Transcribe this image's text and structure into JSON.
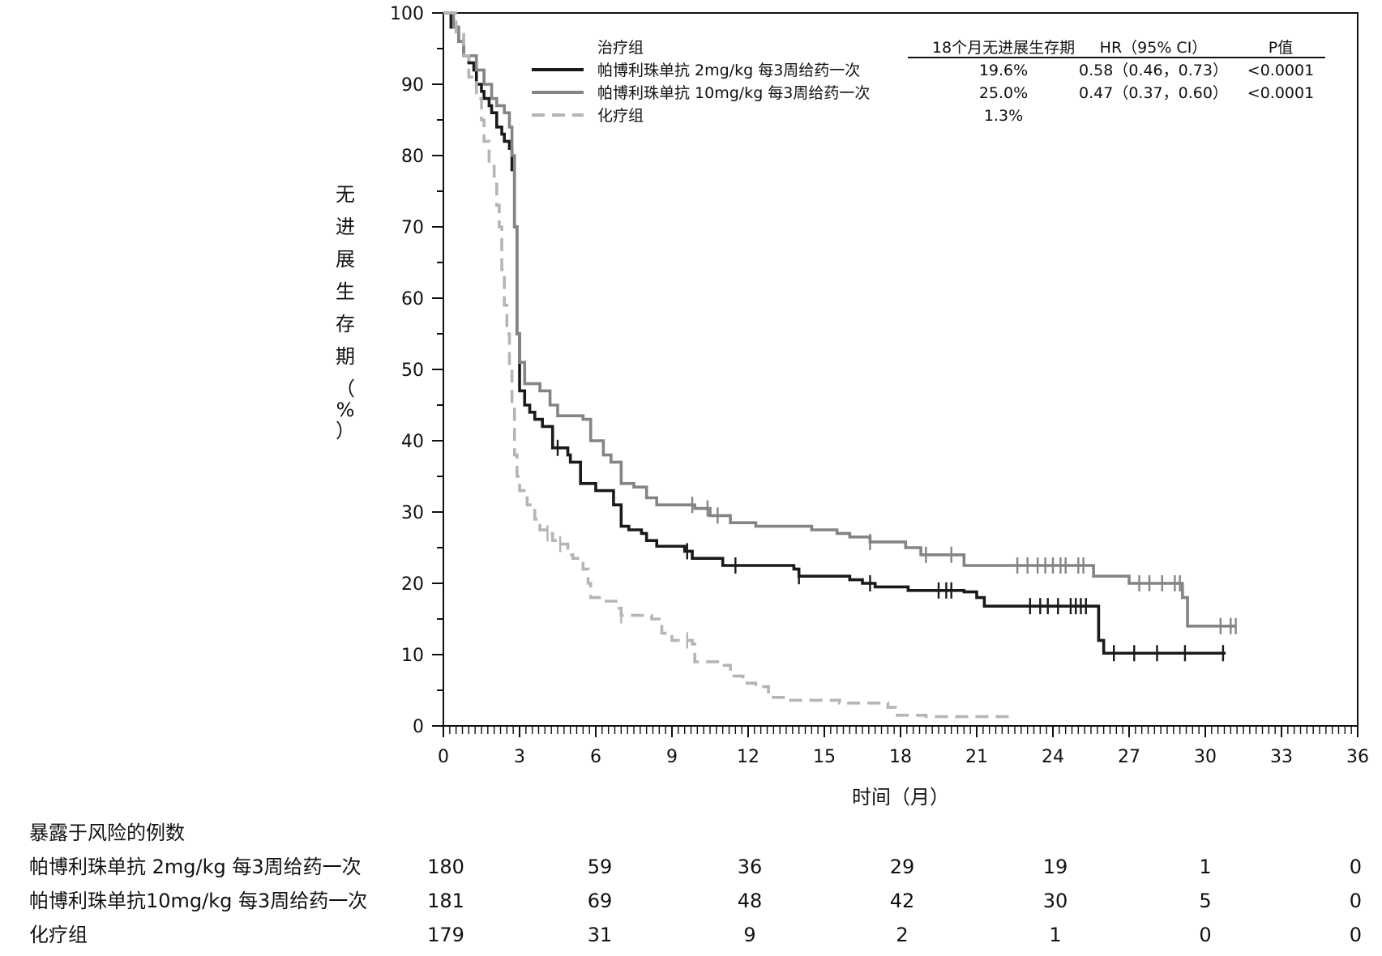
{
  "chart_data": {
    "type": "line",
    "subtype": "kaplan-meier",
    "xlabel": "时间（月）",
    "ylabel": "无进展生存期（%）",
    "xlim": [
      0,
      36
    ],
    "ylim": [
      0,
      100
    ],
    "x_ticks": [
      0,
      3,
      6,
      9,
      12,
      15,
      18,
      21,
      24,
      27,
      30,
      33,
      36
    ],
    "y_ticks": [
      0,
      10,
      20,
      30,
      40,
      50,
      60,
      70,
      80,
      90,
      100
    ],
    "grid": false,
    "legend_position": "top-right",
    "legend_header": {
      "group": "治疗组",
      "pfs18": "18个月无进展生存期",
      "hr": "HR（95% CI）",
      "p": "P值"
    },
    "series": [
      {
        "name": "帕博利珠单抗 2mg/kg 每3周给药一次",
        "color": "#1a1a1a",
        "style": "solid",
        "pfs18": "19.6%",
        "hr": "0.58（0.46，0.73）",
        "p": "<0.0001",
        "points": [
          [
            0,
            100
          ],
          [
            0.3,
            98
          ],
          [
            0.6,
            96
          ],
          [
            0.8,
            94
          ],
          [
            1.0,
            93
          ],
          [
            1.2,
            92
          ],
          [
            1.3,
            90
          ],
          [
            1.5,
            89
          ],
          [
            1.6,
            88
          ],
          [
            1.8,
            87
          ],
          [
            1.9,
            86
          ],
          [
            2.1,
            84
          ],
          [
            2.3,
            83
          ],
          [
            2.4,
            82
          ],
          [
            2.6,
            81
          ],
          [
            2.7,
            78
          ],
          [
            2.8,
            70
          ],
          [
            2.9,
            55
          ],
          [
            3.0,
            47
          ],
          [
            3.2,
            45
          ],
          [
            3.4,
            44
          ],
          [
            3.6,
            43
          ],
          [
            3.9,
            42
          ],
          [
            4.3,
            39
          ],
          [
            4.9,
            38
          ],
          [
            5.0,
            37
          ],
          [
            5.4,
            34
          ],
          [
            6.0,
            33
          ],
          [
            6.7,
            31
          ],
          [
            7.0,
            28
          ],
          [
            7.3,
            27.5
          ],
          [
            7.8,
            27
          ],
          [
            8.0,
            26
          ],
          [
            8.4,
            25.2
          ],
          [
            9.5,
            24.5
          ],
          [
            9.8,
            23.5
          ],
          [
            11.0,
            22.5
          ],
          [
            13.8,
            22
          ],
          [
            14.0,
            21
          ],
          [
            16.0,
            20.5
          ],
          [
            16.5,
            20
          ],
          [
            17.0,
            19.5
          ],
          [
            18.3,
            19
          ],
          [
            20.0,
            19
          ],
          [
            20.5,
            18.8
          ],
          [
            21.0,
            18
          ],
          [
            21.3,
            16.8
          ],
          [
            25.7,
            16.8
          ],
          [
            25.8,
            12
          ],
          [
            26.0,
            10.2
          ],
          [
            30.8,
            10.2
          ]
        ],
        "censor_x": [
          4.5,
          9.6,
          11.5,
          14.0,
          16.8,
          19.5,
          19.8,
          20.0,
          23.1,
          23.5,
          23.8,
          24.2,
          24.7,
          24.9,
          25.1,
          25.3,
          26.4,
          27.2,
          28.1,
          29.2,
          30.7
        ]
      },
      {
        "name": "帕博利珠单抗 10mg/kg 每3周给药一次",
        "color": "#848484",
        "style": "solid",
        "pfs18": "25.0%",
        "hr": "0.47（0.37，0.60）",
        "p": "<0.0001",
        "points": [
          [
            0,
            100
          ],
          [
            0.4,
            98
          ],
          [
            0.6,
            96
          ],
          [
            0.8,
            94
          ],
          [
            1.3,
            92
          ],
          [
            1.6,
            90
          ],
          [
            1.9,
            88
          ],
          [
            2.1,
            87
          ],
          [
            2.4,
            86
          ],
          [
            2.6,
            84
          ],
          [
            2.7,
            80
          ],
          [
            2.8,
            70
          ],
          [
            2.9,
            55
          ],
          [
            3.0,
            51
          ],
          [
            3.2,
            48
          ],
          [
            3.8,
            47
          ],
          [
            4.2,
            45
          ],
          [
            4.5,
            43.5
          ],
          [
            5.5,
            43
          ],
          [
            5.8,
            40
          ],
          [
            6.3,
            38
          ],
          [
            6.6,
            37
          ],
          [
            7.0,
            34
          ],
          [
            7.5,
            33.5
          ],
          [
            8.0,
            32
          ],
          [
            8.4,
            31
          ],
          [
            9.9,
            30.5
          ],
          [
            10.5,
            29.5
          ],
          [
            11.3,
            28.5
          ],
          [
            12.3,
            28
          ],
          [
            14.5,
            27.5
          ],
          [
            15.5,
            27
          ],
          [
            16.0,
            26.5
          ],
          [
            16.8,
            25.8
          ],
          [
            18.2,
            25
          ],
          [
            18.8,
            24
          ],
          [
            20.0,
            24
          ],
          [
            20.5,
            22.5
          ],
          [
            25.5,
            22.5
          ],
          [
            25.6,
            21
          ],
          [
            26.5,
            21
          ],
          [
            27.0,
            20
          ],
          [
            29.0,
            20
          ],
          [
            29.1,
            18
          ],
          [
            29.3,
            14
          ],
          [
            31.2,
            14
          ]
        ],
        "censor_x": [
          9.8,
          10.4,
          10.8,
          16.8,
          19.0,
          20.0,
          22.6,
          23.0,
          23.4,
          23.7,
          24.0,
          24.3,
          24.5,
          25.0,
          25.2,
          27.4,
          27.8,
          28.3,
          28.8,
          29.0,
          30.6,
          31.0,
          31.2
        ]
      },
      {
        "name": "化疗组",
        "color": "#b5b5b5",
        "style": "dashed",
        "pfs18": "1.3%",
        "hr": "",
        "p": "",
        "points": [
          [
            0,
            100
          ],
          [
            0.5,
            97
          ],
          [
            0.8,
            94
          ],
          [
            1.0,
            91
          ],
          [
            1.3,
            88
          ],
          [
            1.5,
            85
          ],
          [
            1.6,
            82
          ],
          [
            1.8,
            79
          ],
          [
            2.0,
            76
          ],
          [
            2.1,
            73
          ],
          [
            2.2,
            70
          ],
          [
            2.3,
            64
          ],
          [
            2.4,
            59
          ],
          [
            2.5,
            55
          ],
          [
            2.6,
            50
          ],
          [
            2.7,
            45
          ],
          [
            2.8,
            38
          ],
          [
            2.9,
            35
          ],
          [
            3.0,
            33
          ],
          [
            3.3,
            31
          ],
          [
            3.6,
            29
          ],
          [
            3.8,
            27.5
          ],
          [
            4.1,
            27
          ],
          [
            4.3,
            26
          ],
          [
            4.6,
            25.5
          ],
          [
            4.9,
            24
          ],
          [
            5.1,
            23.5
          ],
          [
            5.5,
            22
          ],
          [
            5.7,
            20
          ],
          [
            5.8,
            18
          ],
          [
            6.3,
            17.5
          ],
          [
            6.8,
            16.5
          ],
          [
            7.0,
            15.5
          ],
          [
            8.2,
            15
          ],
          [
            8.6,
            13
          ],
          [
            9.0,
            12
          ],
          [
            9.8,
            11.5
          ],
          [
            9.9,
            9
          ],
          [
            11.0,
            8.5
          ],
          [
            11.3,
            7
          ],
          [
            11.8,
            6
          ],
          [
            12.3,
            5.5
          ],
          [
            12.8,
            4
          ],
          [
            13.5,
            3.6
          ],
          [
            15.3,
            3.6
          ],
          [
            15.6,
            3.2
          ],
          [
            17.5,
            2.6
          ],
          [
            17.8,
            1.5
          ],
          [
            19.0,
            1.3
          ],
          [
            22.3,
            1.3
          ]
        ],
        "censor_x": [
          4.1,
          4.6,
          7.0,
          9.6
        ]
      }
    ]
  },
  "risk_table": {
    "title": "暴露于风险的例数",
    "columns": [
      0,
      6,
      12,
      18,
      24,
      30,
      36
    ],
    "rows": [
      {
        "label": "帕博利珠单抗 2mg/kg 每3周给药一次",
        "values": [
          "180",
          "59",
          "36",
          "29",
          "19",
          "1",
          "0"
        ]
      },
      {
        "label": "帕博利珠单抗10mg/kg 每3周给药一次",
        "values": [
          "181",
          "69",
          "48",
          "42",
          "30",
          "5",
          "0"
        ]
      },
      {
        "label": "化疗组",
        "values": [
          "179",
          "31",
          "9",
          "2",
          "1",
          "0",
          "0"
        ]
      }
    ]
  }
}
